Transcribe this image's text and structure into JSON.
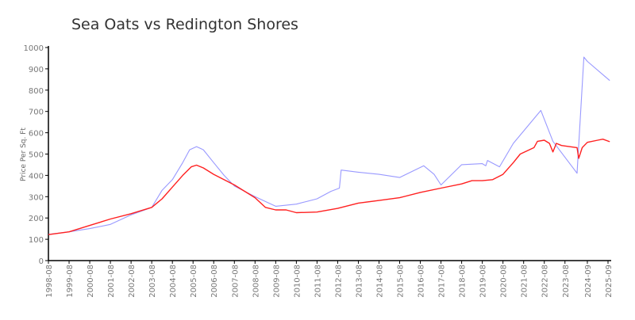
{
  "chart_data": {
    "type": "line",
    "title": "Sea Oats vs Redington Shores",
    "xlabel": "",
    "ylabel": "Price Per Sq. Ft",
    "ylim": [
      0,
      1000
    ],
    "yticks": [
      0,
      100,
      200,
      300,
      400,
      500,
      600,
      700,
      800,
      900,
      1000
    ],
    "xlim": [
      "1998-08",
      "2025-09"
    ],
    "xticks": [
      "1998-08",
      "1999-08",
      "2000-08",
      "2001-08",
      "2002-08",
      "2003-08",
      "2004-08",
      "2005-08",
      "2006-08",
      "2007-08",
      "2008-08",
      "2009-08",
      "2010-08",
      "2011-08",
      "2012-08",
      "2013-08",
      "2014-08",
      "2015-08",
      "2016-08",
      "2017-08",
      "2018-08",
      "2019-08",
      "2020-08",
      "2021-08",
      "2022-08",
      "2023-08",
      "2024-09",
      "2025-09"
    ],
    "grid": false,
    "legend": "none",
    "series": [
      {
        "color": "#9999ff",
        "points": [
          [
            "1998-08",
            123
          ],
          [
            "1999-08",
            135
          ],
          [
            "2000-08",
            150
          ],
          [
            "2001-08",
            170
          ],
          [
            "2002-08",
            215
          ],
          [
            "2003-08",
            250
          ],
          [
            "2004-02",
            330
          ],
          [
            "2004-08",
            380
          ],
          [
            "2005-02",
            460
          ],
          [
            "2005-06",
            520
          ],
          [
            "2005-10",
            535
          ],
          [
            "2006-02",
            520
          ],
          [
            "2006-08",
            460
          ],
          [
            "2007-02",
            400
          ],
          [
            "2007-08",
            350
          ],
          [
            "2008-08",
            300
          ],
          [
            "2009-08",
            255
          ],
          [
            "2010-08",
            265
          ],
          [
            "2011-08",
            290
          ],
          [
            "2012-04",
            325
          ],
          [
            "2012-09",
            340
          ],
          [
            "2012-10",
            425
          ],
          [
            "2013-08",
            415
          ],
          [
            "2014-08",
            405
          ],
          [
            "2015-08",
            390
          ],
          [
            "2016-10",
            445
          ],
          [
            "2017-04",
            405
          ],
          [
            "2017-08",
            355
          ],
          [
            "2018-08",
            450
          ],
          [
            "2019-08",
            455
          ],
          [
            "2019-10",
            445
          ],
          [
            "2019-11",
            470
          ],
          [
            "2020-06",
            440
          ],
          [
            "2021-02",
            550
          ],
          [
            "2022-06",
            705
          ],
          [
            "2023-01",
            560
          ],
          [
            "2024-03",
            410
          ],
          [
            "2024-07",
            955
          ],
          [
            "2024-09",
            935
          ],
          [
            "2025-10",
            845
          ]
        ]
      },
      {
        "color": "#ff2020",
        "points": [
          [
            "1998-08",
            122
          ],
          [
            "1999-08",
            135
          ],
          [
            "2000-08",
            165
          ],
          [
            "2001-08",
            195
          ],
          [
            "2002-08",
            220
          ],
          [
            "2003-08",
            250
          ],
          [
            "2004-02",
            290
          ],
          [
            "2004-08",
            345
          ],
          [
            "2005-02",
            400
          ],
          [
            "2005-07",
            440
          ],
          [
            "2005-10",
            448
          ],
          [
            "2006-02",
            435
          ],
          [
            "2006-08",
            405
          ],
          [
            "2007-08",
            355
          ],
          [
            "2008-08",
            295
          ],
          [
            "2009-02",
            250
          ],
          [
            "2009-08",
            238
          ],
          [
            "2010-02",
            238
          ],
          [
            "2010-08",
            225
          ],
          [
            "2011-08",
            228
          ],
          [
            "2012-08",
            245
          ],
          [
            "2013-08",
            270
          ],
          [
            "2014-08",
            282
          ],
          [
            "2015-08",
            295
          ],
          [
            "2016-08",
            320
          ],
          [
            "2017-08",
            340
          ],
          [
            "2018-08",
            360
          ],
          [
            "2019-02",
            375
          ],
          [
            "2019-08",
            375
          ],
          [
            "2020-02",
            380
          ],
          [
            "2020-08",
            405
          ],
          [
            "2021-02",
            460
          ],
          [
            "2021-06",
            500
          ],
          [
            "2022-02",
            530
          ],
          [
            "2022-04",
            560
          ],
          [
            "2022-08",
            565
          ],
          [
            "2022-11",
            550
          ],
          [
            "2023-01",
            510
          ],
          [
            "2023-03",
            550
          ],
          [
            "2023-06",
            540
          ],
          [
            "2024-03",
            530
          ],
          [
            "2024-04",
            480
          ],
          [
            "2024-06",
            530
          ],
          [
            "2024-09",
            555
          ],
          [
            "2025-03",
            565
          ],
          [
            "2025-06",
            570
          ],
          [
            "2025-10",
            558
          ]
        ]
      }
    ]
  }
}
